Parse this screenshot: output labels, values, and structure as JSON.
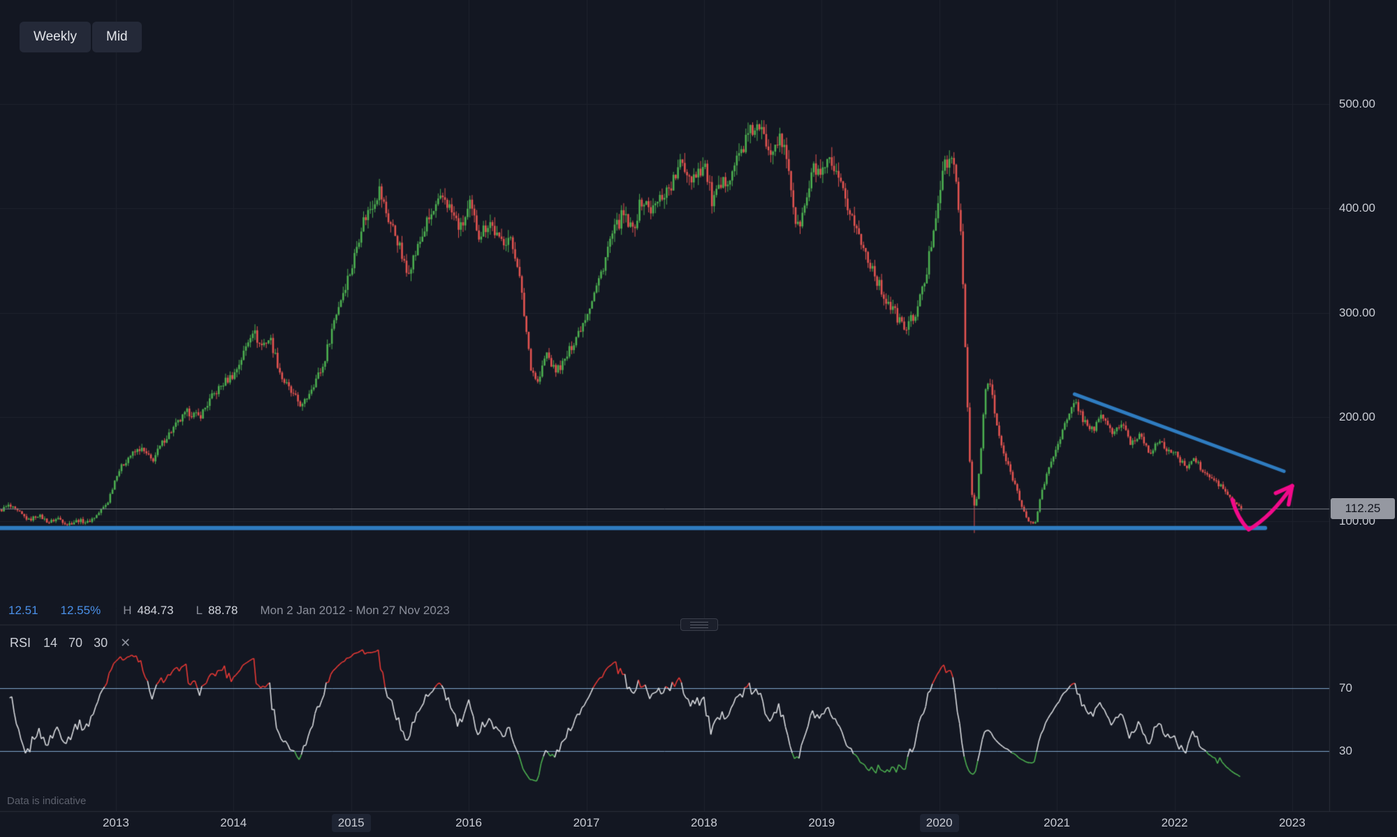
{
  "toolbar": {
    "interval_label": "Weekly",
    "price_source_label": "Mid"
  },
  "info_bar": {
    "change": "12.51",
    "change_pct": "12.55%",
    "high_label": "H",
    "high": "484.73",
    "low_label": "L",
    "low": "88.78",
    "date_range": "Mon 2 Jan 2012 - Mon 27 Nov 2023"
  },
  "rsi_header": {
    "title": "RSI",
    "params": [
      "14",
      "70",
      "30"
    ],
    "close_label": "✕"
  },
  "footer": {
    "disclaimer": "Data is indicative"
  },
  "price_axis": {
    "labels": [
      500,
      400,
      300,
      200,
      100
    ],
    "last_price": "112.25"
  },
  "rsi_axis": {
    "labels": [
      70,
      30
    ]
  },
  "time_axis": {
    "years": [
      2013,
      2014,
      2015,
      2016,
      2017,
      2018,
      2019,
      2020,
      2021,
      2022,
      2023
    ],
    "boxed_years": [
      2015,
      2020
    ]
  },
  "colors": {
    "background": "#131722",
    "grid": "#1e222d",
    "separator": "#2a2e39",
    "candle_up": "#4caf50",
    "candle_down": "#e25350",
    "price_line": "#787b86",
    "drawing_blue": "#2f7cc0",
    "arrow_pink": "#f20a8a",
    "rsi_line": "#d8dade",
    "rsi_band": "#7fa6cc",
    "rsi_over": "#e53935",
    "rsi_under": "#4caf50",
    "accent_text_blue": "#4a90e8"
  },
  "chart_data": {
    "type": "candlestick",
    "interval": "weekly",
    "x_data_start": 2012.0,
    "x_data_end": 2022.56,
    "visible_time_range": [
      2012.0,
      2023.3
    ],
    "price_axis_ticks": [
      100,
      200,
      300,
      400,
      500
    ],
    "high": 484.73,
    "high_t": 2018.45,
    "low": 88.78,
    "low_t": 2020.28,
    "last_close": 112.25,
    "noise": {
      "close": 0.018,
      "wick": 0.022
    },
    "price_path": [
      [
        2012.0,
        110
      ],
      [
        2012.08,
        115
      ],
      [
        2012.17,
        108
      ],
      [
        2012.25,
        101
      ],
      [
        2012.33,
        106
      ],
      [
        2012.42,
        99
      ],
      [
        2012.5,
        103
      ],
      [
        2012.58,
        97
      ],
      [
        2012.67,
        101
      ],
      [
        2012.75,
        99
      ],
      [
        2012.83,
        106
      ],
      [
        2012.92,
        118
      ],
      [
        2013.0,
        146
      ],
      [
        2013.1,
        162
      ],
      [
        2013.2,
        170
      ],
      [
        2013.3,
        158
      ],
      [
        2013.4,
        178
      ],
      [
        2013.5,
        192
      ],
      [
        2013.6,
        205
      ],
      [
        2013.7,
        200
      ],
      [
        2013.8,
        218
      ],
      [
        2013.9,
        232
      ],
      [
        2014.0,
        242
      ],
      [
        2014.08,
        262
      ],
      [
        2014.15,
        285
      ],
      [
        2014.22,
        268
      ],
      [
        2014.3,
        276
      ],
      [
        2014.4,
        238
      ],
      [
        2014.5,
        220
      ],
      [
        2014.58,
        210
      ],
      [
        2014.65,
        228
      ],
      [
        2014.75,
        248
      ],
      [
        2014.85,
        295
      ],
      [
        2014.95,
        330
      ],
      [
        2015.0,
        345
      ],
      [
        2015.08,
        385
      ],
      [
        2015.15,
        400
      ],
      [
        2015.23,
        418
      ],
      [
        2015.3,
        392
      ],
      [
        2015.38,
        372
      ],
      [
        2015.46,
        338
      ],
      [
        2015.55,
        360
      ],
      [
        2015.63,
        385
      ],
      [
        2015.7,
        398
      ],
      [
        2015.78,
        412
      ],
      [
        2015.85,
        395
      ],
      [
        2015.92,
        380
      ],
      [
        2016.0,
        402
      ],
      [
        2016.08,
        375
      ],
      [
        2016.17,
        388
      ],
      [
        2016.25,
        368
      ],
      [
        2016.33,
        372
      ],
      [
        2016.4,
        352
      ],
      [
        2016.46,
        300
      ],
      [
        2016.52,
        248
      ],
      [
        2016.58,
        232
      ],
      [
        2016.65,
        262
      ],
      [
        2016.72,
        244
      ],
      [
        2016.8,
        252
      ],
      [
        2016.88,
        272
      ],
      [
        2016.95,
        288
      ],
      [
        2017.0,
        302
      ],
      [
        2017.1,
        332
      ],
      [
        2017.2,
        372
      ],
      [
        2017.3,
        394
      ],
      [
        2017.38,
        378
      ],
      [
        2017.46,
        408
      ],
      [
        2017.55,
        398
      ],
      [
        2017.63,
        412
      ],
      [
        2017.72,
        424
      ],
      [
        2017.8,
        444
      ],
      [
        2017.88,
        430
      ],
      [
        2017.95,
        438
      ],
      [
        2018.0,
        440
      ],
      [
        2018.06,
        406
      ],
      [
        2018.15,
        422
      ],
      [
        2018.25,
        442
      ],
      [
        2018.35,
        466
      ],
      [
        2018.42,
        478
      ],
      [
        2018.48,
        472
      ],
      [
        2018.55,
        458
      ],
      [
        2018.62,
        468
      ],
      [
        2018.7,
        448
      ],
      [
        2018.78,
        378
      ],
      [
        2018.85,
        402
      ],
      [
        2018.92,
        438
      ],
      [
        2019.0,
        432
      ],
      [
        2019.06,
        444
      ],
      [
        2019.15,
        420
      ],
      [
        2019.25,
        392
      ],
      [
        2019.33,
        366
      ],
      [
        2019.42,
        344
      ],
      [
        2019.5,
        320
      ],
      [
        2019.6,
        302
      ],
      [
        2019.7,
        284
      ],
      [
        2019.8,
        302
      ],
      [
        2019.88,
        336
      ],
      [
        2019.95,
        388
      ],
      [
        2020.02,
        436
      ],
      [
        2020.08,
        448
      ],
      [
        2020.14,
        430
      ],
      [
        2020.18,
        360
      ],
      [
        2020.22,
        240
      ],
      [
        2020.26,
        130
      ],
      [
        2020.3,
        112
      ],
      [
        2020.34,
        160
      ],
      [
        2020.38,
        225
      ],
      [
        2020.42,
        235
      ],
      [
        2020.48,
        190
      ],
      [
        2020.55,
        160
      ],
      [
        2020.62,
        140
      ],
      [
        2020.68,
        120
      ],
      [
        2020.74,
        100
      ],
      [
        2020.8,
        96
      ],
      [
        2020.86,
        128
      ],
      [
        2020.92,
        150
      ],
      [
        2021.0,
        176
      ],
      [
        2021.08,
        198
      ],
      [
        2021.15,
        215
      ],
      [
        2021.22,
        196
      ],
      [
        2021.3,
        188
      ],
      [
        2021.38,
        202
      ],
      [
        2021.46,
        184
      ],
      [
        2021.54,
        194
      ],
      [
        2021.62,
        174
      ],
      [
        2021.7,
        184
      ],
      [
        2021.78,
        166
      ],
      [
        2021.85,
        176
      ],
      [
        2021.92,
        170
      ],
      [
        2022.0,
        164
      ],
      [
        2022.08,
        152
      ],
      [
        2022.16,
        160
      ],
      [
        2022.24,
        146
      ],
      [
        2022.32,
        140
      ],
      [
        2022.4,
        132
      ],
      [
        2022.48,
        120
      ],
      [
        2022.56,
        112.25
      ]
    ],
    "support_line": {
      "price": 93.5,
      "t_start": 2012.0,
      "t_end": 2022.77
    },
    "trendline": {
      "from": [
        2021.15,
        222
      ],
      "to": [
        2022.93,
        148
      ]
    },
    "arrow": {
      "path": [
        [
          2022.49,
          121
        ],
        [
          2022.63,
          92
        ],
        [
          2023.0,
          134
        ]
      ],
      "head": [
        [
          2022.86,
          127
        ],
        [
          2022.97,
          116
        ]
      ]
    },
    "rsi": {
      "period": 14,
      "upper": 70,
      "lower": 30
    }
  }
}
